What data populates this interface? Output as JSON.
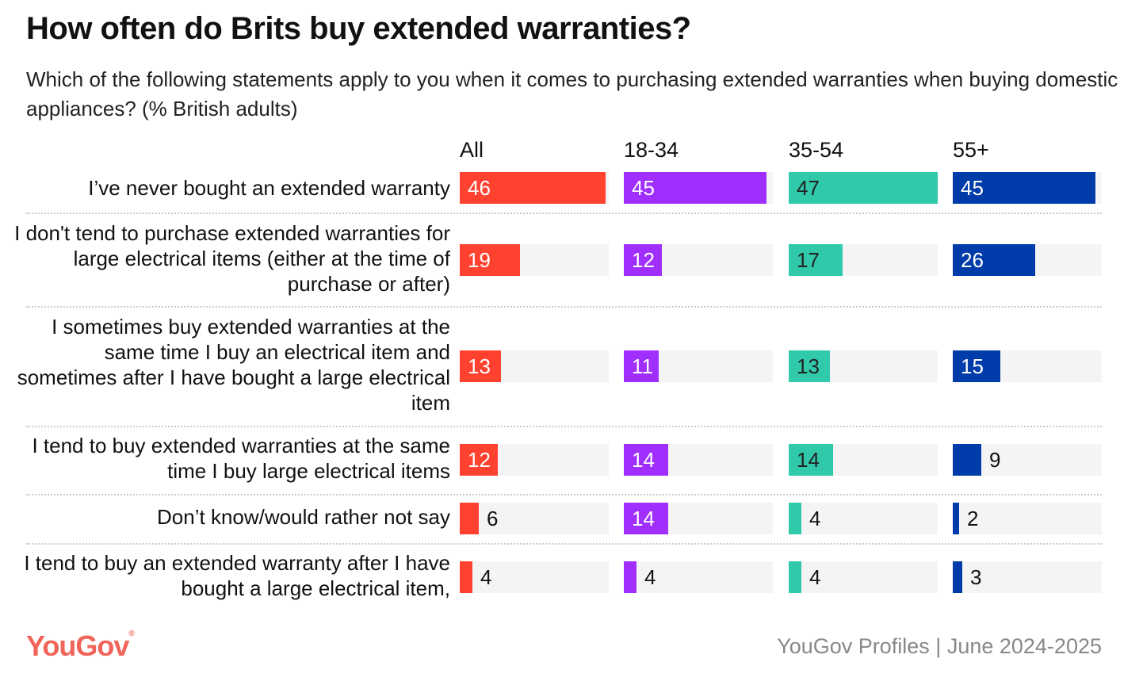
{
  "chart_data": {
    "type": "bar",
    "title": "How often do Brits buy extended warranties?",
    "subtitle": "Which of the following statements apply to you when it comes to purchasing extended warranties when buying domestic appliances? (% British adults)",
    "categories": [
      "I’ve never bought an extended warranty",
      "I don't tend to purchase extended warranties for large electrical items (either at the time of purchase or after)",
      "I sometimes buy extended warranties at the same time I buy an electrical item and sometimes after I have bought a large electrical item",
      "I tend to buy extended warranties at the same time I buy large electrical items",
      "Don’t know/would rather not say",
      "I tend to buy an extended warranty after I have bought a large electrical item,"
    ],
    "series": [
      {
        "name": "All",
        "color": "#ff4130",
        "values": [
          46,
          19,
          13,
          12,
          6,
          4
        ]
      },
      {
        "name": "18-34",
        "color": "#a02ffe",
        "values": [
          45,
          12,
          11,
          14,
          14,
          4
        ]
      },
      {
        "name": "35-54",
        "color": "#30c9a9",
        "values": [
          47,
          17,
          13,
          14,
          4,
          4
        ]
      },
      {
        "name": "55+",
        "color": "#003ca9",
        "values": [
          45,
          26,
          15,
          9,
          2,
          3
        ]
      }
    ],
    "xlim": [
      0,
      47
    ],
    "grid": false
  },
  "footer": {
    "logo": "YouGov",
    "source": "YouGov Profiles | June 2024-2025"
  }
}
